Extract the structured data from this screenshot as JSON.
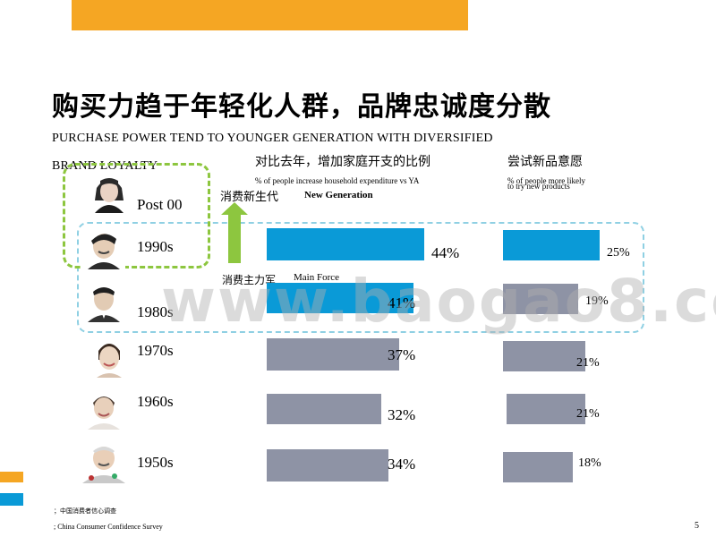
{
  "title": "购买力趋于年轻化人群，品牌忠诚度分散",
  "subtitle_line1": "PURCHASE POWER TEND TO YOUNGER GENERATION WITH DIVERSIFIED",
  "subtitle_line2": "BRAND LOYALTY",
  "columns": {
    "expenditure": {
      "title_cn": "对比去年，增加家庭开支的比例",
      "title_en": "% of people increase household expenditure vs YA"
    },
    "new_products": {
      "title_cn": "尝试新品意愿",
      "title_en_line1": "% of people more likely",
      "title_en_line2": "to try new products"
    }
  },
  "labels": {
    "new_generation_cn": "消费新生代",
    "new_generation_en": "New Generation",
    "main_force_cn": "消费主力军",
    "main_force_en": "Main Force"
  },
  "generations": [
    {
      "name": "Post 00",
      "avatar": "young-girl-avatar-icon"
    },
    {
      "name": "1990s",
      "avatar": "young-man-avatar-icon",
      "expenditure": "44%",
      "expenditure_value": 44,
      "new_products": "25%",
      "new_products_value": 25
    },
    {
      "name": "1980s",
      "avatar": "man-avatar-icon",
      "expenditure": "41%",
      "expenditure_value": 41,
      "new_products": "19%",
      "new_products_value": 19
    },
    {
      "name": "1970s",
      "avatar": "woman-avatar-icon",
      "expenditure": "37%",
      "expenditure_value": 37,
      "new_products": "21%",
      "new_products_value": 21
    },
    {
      "name": "1960s",
      "avatar": "older-woman-avatar-icon",
      "expenditure": "32%",
      "expenditure_value": 32,
      "new_products": "21%",
      "new_products_value": 21
    },
    {
      "name": "1950s",
      "avatar": "elderly-man-avatar-icon",
      "expenditure": "34%",
      "expenditure_value": 34,
      "new_products": "18%",
      "new_products_value": 18
    }
  ],
  "colors": {
    "accent_orange": "#f5a623",
    "highlight_blue": "#0a9ad7",
    "neutral_gray": "#8e93a5",
    "green": "#8dc63f",
    "light_blue_dashed": "#8fd0e3"
  },
  "watermark": "www.baogao8.com",
  "source_cn": "；中国消费者信心调查",
  "source_en": "; China Consumer Confidence Survey",
  "page_number": "5"
}
